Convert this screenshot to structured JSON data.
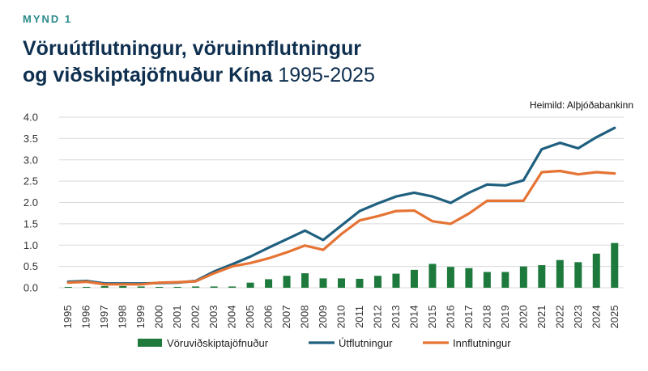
{
  "header": {
    "figure_label": "MYND 1",
    "title_bold_1": "Vöruútflutningur, vöruinnflutningur",
    "title_bold_2": "og viðskiptajöfnuður Kína",
    "title_years": "1995-2025",
    "source": "Heimild: Alþjóðabankinn"
  },
  "colors": {
    "balance": "#1e7a3c",
    "exports": "#1f5f7f",
    "imports": "#e57434"
  },
  "chart_data": {
    "type": "bar+line",
    "x": [
      "1995",
      "1996",
      "1997",
      "1998",
      "1999",
      "2000",
      "2001",
      "2002",
      "2003",
      "2004",
      "2005",
      "2006",
      "2007",
      "2008",
      "2009",
      "2010",
      "2011",
      "2012",
      "2013",
      "2014",
      "2015",
      "2016",
      "2017",
      "2018",
      "2019",
      "2020",
      "2021",
      "2022",
      "2023",
      "2024",
      "2025"
    ],
    "ylim": [
      0,
      4.0
    ],
    "yticks": [
      "0.0",
      "0.5",
      "1.0",
      "1.5",
      "2.0",
      "2.5",
      "3.0",
      "3.5",
      "4.0"
    ],
    "grid": "horizontal",
    "legend_position": "bottom",
    "series": [
      {
        "name": "Vöruviðskiptajöfnuður",
        "kind": "bar",
        "values": [
          0.02,
          0.02,
          0.04,
          0.04,
          0.03,
          0.02,
          0.02,
          0.03,
          0.03,
          0.03,
          0.12,
          0.2,
          0.28,
          0.34,
          0.22,
          0.22,
          0.21,
          0.28,
          0.33,
          0.42,
          0.56,
          0.49,
          0.46,
          0.37,
          0.37,
          0.5,
          0.53,
          0.65,
          0.6,
          0.8,
          1.05
        ]
      },
      {
        "name": "Útflutningur",
        "kind": "line",
        "values": [
          0.14,
          0.16,
          0.1,
          0.1,
          0.1,
          0.11,
          0.12,
          0.16,
          0.38,
          0.55,
          0.73,
          0.94,
          1.14,
          1.34,
          1.12,
          1.46,
          1.8,
          1.98,
          2.14,
          2.23,
          2.14,
          1.99,
          2.23,
          2.42,
          2.4,
          2.52,
          3.25,
          3.4,
          3.27,
          3.53,
          3.75
        ]
      },
      {
        "name": "Innflutningur",
        "kind": "line",
        "values": [
          0.12,
          0.14,
          0.08,
          0.08,
          0.08,
          0.12,
          0.13,
          0.15,
          0.34,
          0.5,
          0.58,
          0.69,
          0.83,
          0.99,
          0.89,
          1.26,
          1.58,
          1.68,
          1.8,
          1.81,
          1.56,
          1.5,
          1.74,
          2.04,
          2.04,
          2.04,
          2.71,
          2.74,
          2.66,
          2.71,
          2.68
        ]
      }
    ]
  }
}
